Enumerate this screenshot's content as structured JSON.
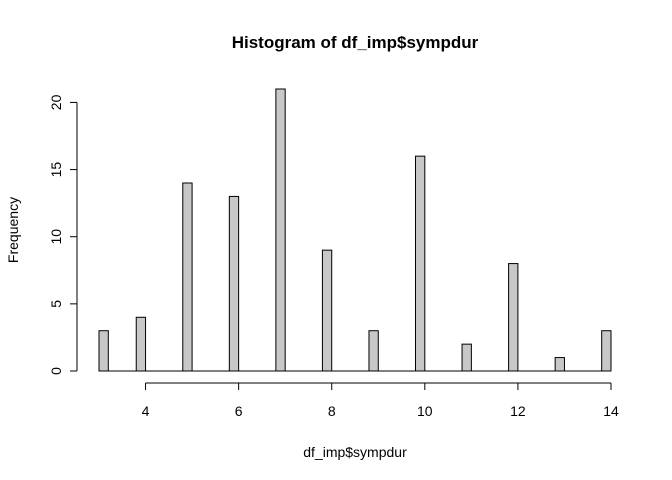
{
  "chart_data": {
    "type": "bar",
    "title": "Histogram of df_imp$sympdur",
    "xlabel": "df_imp$sympdur",
    "ylabel": "Frequency",
    "xlim": [
      3,
      14
    ],
    "ylim": [
      0,
      21
    ],
    "x_ticks": [
      4,
      6,
      8,
      10,
      12,
      14
    ],
    "y_ticks": [
      0,
      5,
      10,
      15,
      20
    ],
    "bin_width": 0.2,
    "bins": [
      {
        "start": 3.0,
        "end": 3.2,
        "count": 3
      },
      {
        "start": 3.8,
        "end": 4.0,
        "count": 4
      },
      {
        "start": 4.8,
        "end": 5.0,
        "count": 14
      },
      {
        "start": 5.8,
        "end": 6.0,
        "count": 13
      },
      {
        "start": 6.8,
        "end": 7.0,
        "count": 21
      },
      {
        "start": 7.8,
        "end": 8.0,
        "count": 9
      },
      {
        "start": 8.8,
        "end": 9.0,
        "count": 3
      },
      {
        "start": 9.8,
        "end": 10.0,
        "count": 16
      },
      {
        "start": 10.8,
        "end": 11.0,
        "count": 2
      },
      {
        "start": 11.8,
        "end": 12.0,
        "count": 8
      },
      {
        "start": 12.8,
        "end": 13.0,
        "count": 1
      },
      {
        "start": 13.8,
        "end": 14.0,
        "count": 3
      }
    ],
    "bar_color": "#c8c8c8",
    "border_color": "#000000",
    "grid": false,
    "legend": "none"
  }
}
